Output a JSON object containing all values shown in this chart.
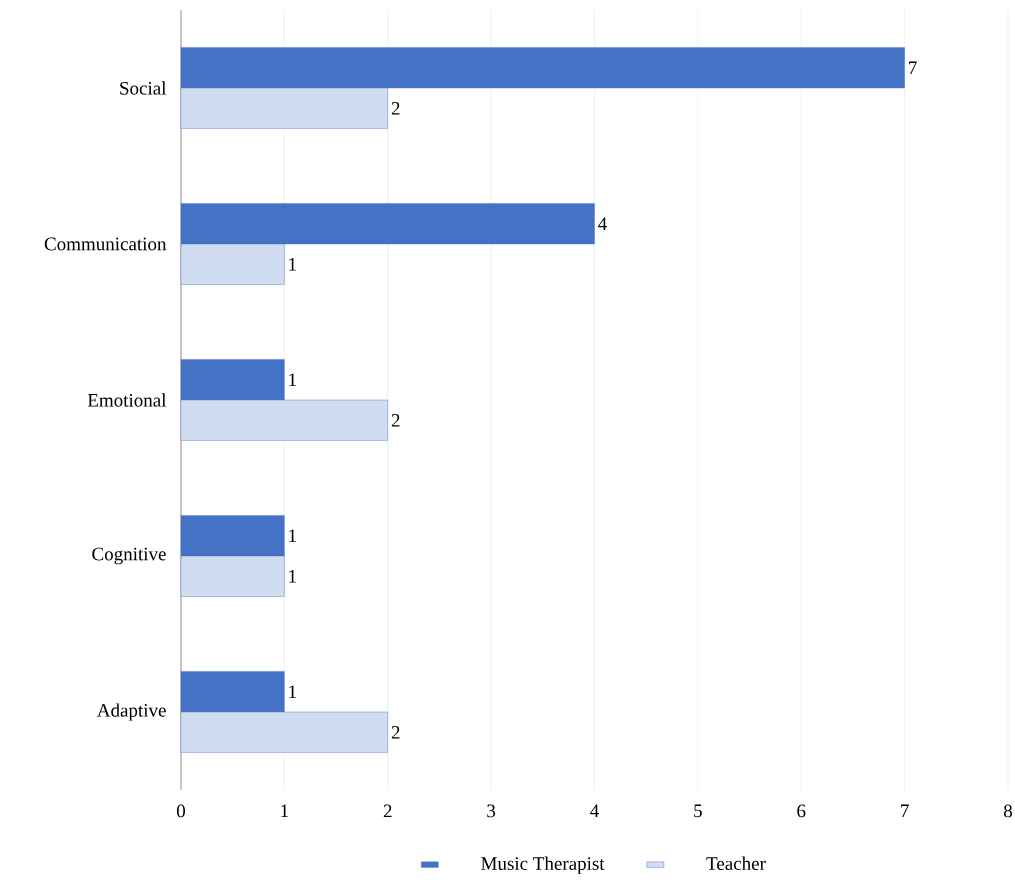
{
  "chart_data": {
    "type": "bar",
    "orientation": "horizontal",
    "categories": [
      "Social",
      "Communication",
      "Emotional",
      "Cognitive",
      "Adaptive"
    ],
    "series": [
      {
        "name": "Music Therapist",
        "color": "#4472c4",
        "values": [
          7,
          4,
          1,
          1,
          1
        ]
      },
      {
        "name": "Teacher",
        "color": "#4472c4",
        "values": [
          2,
          1,
          2,
          1,
          2
        ]
      }
    ],
    "xlim": [
      0,
      8
    ],
    "xticks": [
      0,
      1,
      2,
      3,
      4,
      5,
      6,
      7,
      8
    ],
    "grid": "x",
    "legend": "bottom",
    "data_labels": true
  }
}
